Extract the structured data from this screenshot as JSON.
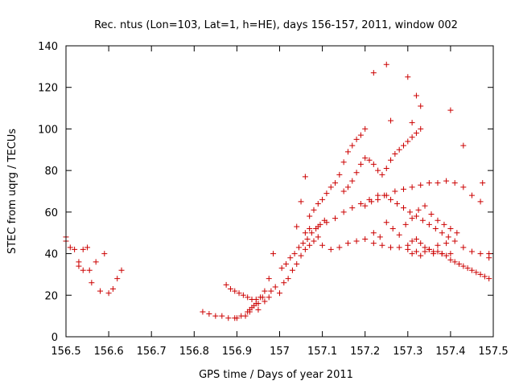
{
  "chart_data": {
    "type": "scatter",
    "title": "Rec. ntus (Lon=103, Lat=1, h=HE), days 156-157, 2011, window 002",
    "xlabel": "GPS time / Days of year 2011",
    "ylabel": "STEC from uqrg / TECUs",
    "xlim": [
      156.5,
      157.5
    ],
    "ylim": [
      0,
      140
    ],
    "x_ticks": [
      156.5,
      156.6,
      156.7,
      156.8,
      156.9,
      157,
      157.1,
      157.2,
      157.3,
      157.4,
      157.5
    ],
    "x_tick_labels": [
      "156.5",
      "156.6",
      "156.7",
      "156.8",
      "156.9",
      "157",
      "157.1",
      "157.2",
      "157.3",
      "157.4",
      "157.5"
    ],
    "y_ticks": [
      0,
      20,
      40,
      60,
      80,
      100,
      120,
      140
    ],
    "y_tick_labels": [
      "0",
      "20",
      "40",
      "60",
      "80",
      "100",
      "120",
      "140"
    ],
    "grid": false,
    "marker": "+",
    "marker_color": "#cc0000",
    "x": [
      156.5,
      156.5,
      156.51,
      156.52,
      156.53,
      156.53,
      156.54,
      156.54,
      156.55,
      156.555,
      156.56,
      156.57,
      156.58,
      156.59,
      156.6,
      156.61,
      156.62,
      156.63,
      156.82,
      156.835,
      156.85,
      156.865,
      156.88,
      156.895,
      156.9,
      156.91,
      156.92,
      156.93,
      156.95,
      156.965,
      156.975,
      156.99,
      156.875,
      156.885,
      156.895,
      156.905,
      156.915,
      156.925,
      156.935,
      156.945,
      156.95,
      156.96,
      156.98,
      156.925,
      156.93,
      156.935,
      156.94,
      156.945,
      156.955,
      156.965,
      156.975,
      156.985,
      157.0,
      157.01,
      157.02,
      157.03,
      157.04,
      157.05,
      157.06,
      157.07,
      157.08,
      157.09,
      157.1,
      157.005,
      157.015,
      157.025,
      157.035,
      157.045,
      157.055,
      157.065,
      157.075,
      157.085,
      157.095,
      157.105,
      157.04,
      157.05,
      157.06,
      157.07,
      157.08,
      157.09,
      157.1,
      157.11,
      157.12,
      157.13,
      157.14,
      157.15,
      157.16,
      157.17,
      157.18,
      157.19,
      157.2,
      157.06,
      157.07,
      157.09,
      157.11,
      157.13,
      157.15,
      157.17,
      157.19,
      157.21,
      157.23,
      157.25,
      157.27,
      157.29,
      157.31,
      157.33,
      157.35,
      157.37,
      157.39,
      157.41,
      157.43,
      157.45,
      157.47,
      157.49,
      157.15,
      157.16,
      157.17,
      157.18,
      157.19,
      157.2,
      157.21,
      157.22,
      157.23,
      157.24,
      157.25,
      157.26,
      157.27,
      157.28,
      157.29,
      157.3,
      157.31,
      157.32,
      157.33,
      157.12,
      157.14,
      157.16,
      157.18,
      157.2,
      157.22,
      157.24,
      157.26,
      157.28,
      157.3,
      157.32,
      157.34,
      157.36,
      157.38,
      157.4,
      157.22,
      157.235,
      157.25,
      157.265,
      157.28,
      157.295,
      157.31,
      157.325,
      157.34,
      157.355,
      157.37,
      157.385,
      157.4,
      157.415,
      157.2,
      157.215,
      157.23,
      157.245,
      157.26,
      157.275,
      157.29,
      157.305,
      157.32,
      157.335,
      157.35,
      157.365,
      157.38,
      157.395,
      157.3,
      157.31,
      157.32,
      157.33,
      157.34,
      157.35,
      157.36,
      157.37,
      157.38,
      157.39,
      157.4,
      157.41,
      157.42,
      157.43,
      157.44,
      157.45,
      157.46,
      157.47,
      157.48,
      157.49,
      157.31,
      157.33,
      157.35,
      157.37,
      157.39,
      157.41,
      157.43,
      157.45,
      157.47,
      157.49,
      157.22,
      157.25,
      157.26,
      157.3,
      157.31,
      157.32,
      157.33,
      157.4,
      157.43,
      157.475
    ],
    "y": [
      48,
      46,
      43,
      42,
      36,
      34,
      42,
      32,
      43,
      32,
      26,
      36,
      22,
      40,
      21,
      23,
      28,
      32,
      12,
      11,
      10,
      10,
      9,
      9,
      9,
      10,
      10,
      12,
      13,
      17,
      19,
      24,
      25,
      23,
      22,
      21,
      20,
      19,
      18,
      18,
      16,
      19,
      22,
      12,
      13,
      14,
      15,
      16,
      19,
      22,
      28,
      40,
      21,
      26,
      28,
      32,
      35,
      39,
      42,
      44,
      46,
      48,
      44,
      33,
      35,
      38,
      40,
      43,
      45,
      47,
      50,
      52,
      54,
      56,
      53,
      65,
      77,
      58,
      61,
      64,
      66,
      69,
      72,
      74,
      78,
      84,
      89,
      92,
      95,
      97,
      100,
      50,
      52,
      53,
      55,
      57,
      60,
      62,
      64,
      66,
      68,
      68,
      70,
      71,
      72,
      73,
      74,
      74,
      75,
      74,
      72,
      68,
      65,
      40,
      70,
      72,
      75,
      79,
      83,
      86,
      85,
      83,
      80,
      78,
      81,
      85,
      88,
      90,
      92,
      94,
      96,
      98,
      100,
      42,
      43,
      45,
      46,
      47,
      45,
      44,
      43,
      43,
      42,
      41,
      41,
      40,
      40,
      40,
      50,
      48,
      55,
      52,
      49,
      54,
      57,
      61,
      63,
      59,
      56,
      54,
      52,
      50,
      63,
      65,
      66,
      68,
      66,
      64,
      62,
      60,
      58,
      56,
      54,
      52,
      50,
      48,
      44,
      46,
      47,
      45,
      43,
      42,
      41,
      41,
      40,
      39,
      37,
      36,
      35,
      34,
      33,
      32,
      31,
      30,
      29,
      28,
      40,
      39,
      42,
      44,
      45,
      46,
      43,
      41,
      40,
      38,
      127,
      131,
      104,
      125,
      103,
      116,
      111,
      109,
      92,
      74
    ]
  }
}
